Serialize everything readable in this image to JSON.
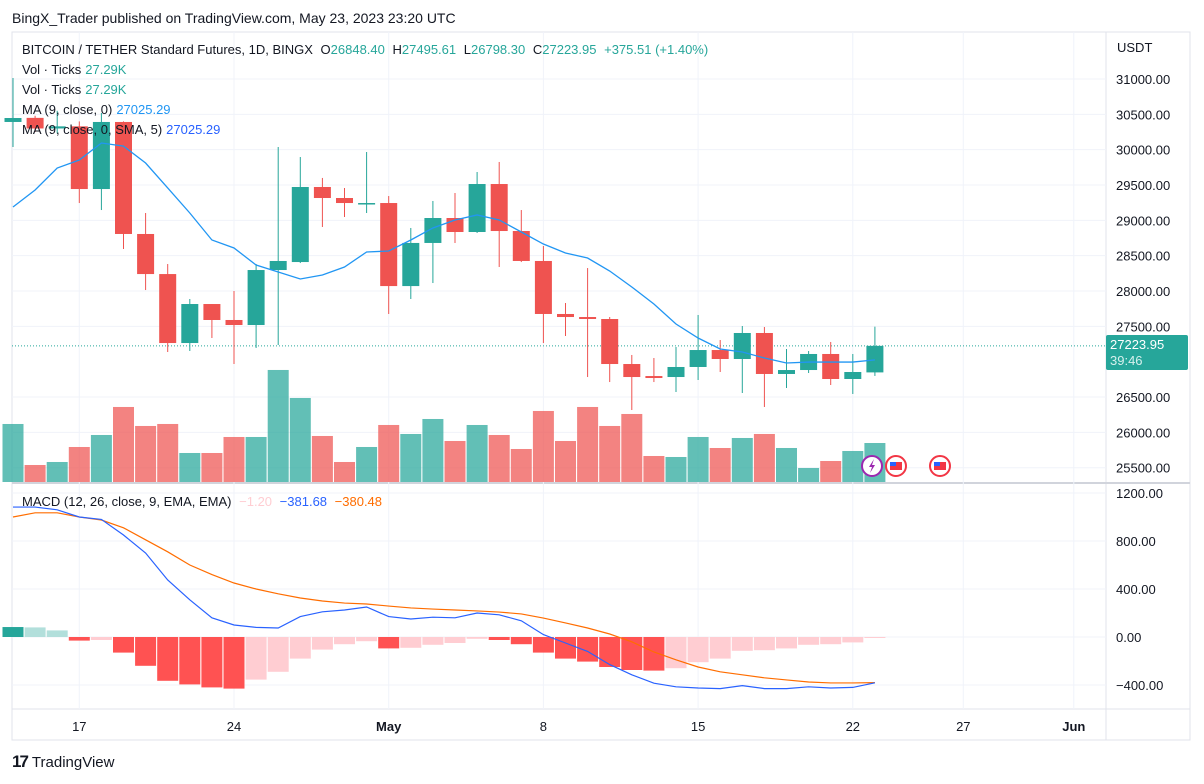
{
  "publish_line": "BingX_Trader published on TradingView.com, May 23, 2023 23:20 UTC",
  "legend": {
    "symbol": "BITCOIN / TETHER Standard Futures, 1D, BINGX",
    "o_label": "O",
    "o": "26848.40",
    "h_label": "H",
    "h": "27495.61",
    "l_label": "L",
    "l": "26798.30",
    "c_label": "C",
    "c": "27223.95",
    "change": "+375.51 (+1.40%)",
    "vol1_label": "Vol · Ticks",
    "vol1": "27.29K",
    "vol2_label": "Vol · Ticks",
    "vol2": "27.29K",
    "ma1_label": "MA (9, close, 0)",
    "ma1": "27025.29",
    "ma2_label": "MA (9, close, 0, SMA, 5)",
    "ma2": "27025.29",
    "macd_label": "MACD (12, 26, close, 9, EMA, EMA)",
    "macd_hist": "−1.20",
    "macd": "−381.68",
    "macd_signal": "−380.48"
  },
  "price_axis": {
    "currency": "USDT",
    "last_price": "27223.95",
    "countdown": "39:46"
  },
  "footer": {
    "brand": "TradingView"
  },
  "colors": {
    "up": "#26a69a",
    "down": "#ef5350",
    "ma": "#2196f3",
    "macd": "#2962ff",
    "signal": "#ff6d00"
  },
  "chart_data": [
    {
      "type": "candlestick",
      "title": "BITCOIN / TETHER Standard Futures, 1D, BINGX",
      "ylabel": "USDT",
      "ylim": [
        25300,
        31300
      ],
      "yticks": [
        "31000.00",
        "30500.00",
        "30000.00",
        "29500.00",
        "29000.00",
        "28500.00",
        "28000.00",
        "27500.00",
        "26500.00",
        "26000.00",
        "25500.00"
      ],
      "xticks": [
        {
          "idx": 3,
          "label": "17"
        },
        {
          "idx": 10,
          "label": "24"
        },
        {
          "idx": 17,
          "label": "May"
        },
        {
          "idx": 24,
          "label": "8"
        },
        {
          "idx": 31,
          "label": "15"
        },
        {
          "idx": 38,
          "label": "22"
        },
        {
          "idx": 43,
          "label": "27"
        },
        {
          "idx": 48,
          "label": "Jun"
        }
      ],
      "dates": [
        "Apr 14",
        "Apr 15",
        "Apr 16",
        "Apr 17",
        "Apr 18",
        "Apr 19",
        "Apr 20",
        "Apr 21",
        "Apr 22",
        "Apr 23",
        "Apr 24",
        "Apr 25",
        "Apr 26",
        "Apr 27",
        "Apr 28",
        "Apr 29",
        "Apr 30",
        "May 1",
        "May 2",
        "May 3",
        "May 4",
        "May 5",
        "May 6",
        "May 7",
        "May 8",
        "May 9",
        "May 10",
        "May 11",
        "May 12",
        "May 13",
        "May 14",
        "May 15",
        "May 16",
        "May 17",
        "May 18",
        "May 19",
        "May 20",
        "May 21",
        "May 22",
        "May 23"
      ],
      "ohlc": [
        [
          30392,
          31014,
          30038,
          30448
        ],
        [
          30450,
          30480,
          30250,
          30300
        ],
        [
          30300,
          30550,
          30230,
          30330
        ],
        [
          30330,
          30400,
          29245,
          29443
        ],
        [
          29443,
          30519,
          29146,
          30392
        ],
        [
          30392,
          30400,
          28595,
          28807
        ],
        [
          28807,
          29104,
          28014,
          28240
        ],
        [
          28240,
          28382,
          27137,
          27264
        ],
        [
          27264,
          27887,
          27151,
          27816
        ],
        [
          27816,
          27816,
          27335,
          27590
        ],
        [
          27590,
          28000,
          26967,
          27519
        ],
        [
          27519,
          28382,
          27194,
          28297
        ],
        [
          28297,
          30038,
          27236,
          28425
        ],
        [
          28410,
          29896,
          28396,
          29472
        ],
        [
          29472,
          29600,
          28906,
          29316
        ],
        [
          29316,
          29458,
          29047,
          29245
        ],
        [
          29240,
          29967,
          29104,
          29245
        ],
        [
          29245,
          29344,
          27675,
          28070
        ],
        [
          28070,
          28892,
          27887,
          28680
        ],
        [
          28680,
          29274,
          28113,
          29033
        ],
        [
          29033,
          29387,
          28680,
          28835
        ],
        [
          28835,
          29684,
          28821,
          29514
        ],
        [
          29514,
          29826,
          28340,
          28849
        ],
        [
          28849,
          29146,
          28410,
          28425
        ],
        [
          28425,
          28637,
          27264,
          27675
        ],
        [
          27675,
          27830,
          27363,
          27632
        ],
        [
          27632,
          28325,
          26783,
          27604
        ],
        [
          27604,
          27632,
          26712,
          26967
        ],
        [
          26967,
          27095,
          26316,
          26783
        ],
        [
          26797,
          27052,
          26712,
          26769
        ],
        [
          26783,
          27208,
          26571,
          26925
        ],
        [
          26925,
          27661,
          26741,
          27165
        ],
        [
          27165,
          27307,
          26854,
          27038
        ],
        [
          27038,
          27505,
          26557,
          27406
        ],
        [
          27406,
          27491,
          26359,
          26826
        ],
        [
          26826,
          27180,
          26628,
          26882
        ],
        [
          26882,
          27151,
          26840,
          27109
        ],
        [
          27109,
          27279,
          26670,
          26755
        ],
        [
          26755,
          27109,
          26543,
          26854
        ],
        [
          26848.4,
          27495.61,
          26798.3,
          27223.95
        ]
      ],
      "ma9": [
        29189,
        29430,
        29740,
        29854,
        30094,
        30050,
        29811,
        29458,
        29104,
        28722,
        28609,
        28368,
        28269,
        28170,
        28226,
        28340,
        28552,
        28566,
        28722,
        28892,
        29005,
        29076,
        29005,
        28835,
        28665,
        28538,
        28467,
        28283,
        28057,
        27816,
        27533,
        27335,
        27180,
        27137,
        27052,
        26981,
        26995,
        26995,
        26995,
        27025.29
      ],
      "volume_k": [
        40.6,
        11.9,
        14,
        24.5,
        32.9,
        52.5,
        39.2,
        40.6,
        20.3,
        20.3,
        31.5,
        31.5,
        78.4,
        58.8,
        32.2,
        14,
        24.5,
        39.9,
        33.6,
        44.1,
        28.7,
        39.9,
        32.9,
        23.1,
        49.7,
        28.7,
        52.5,
        39.2,
        47.6,
        18.2,
        17.5,
        31.5,
        23.8,
        30.8,
        33.6,
        23.8,
        9.8,
        14.7,
        21.7,
        27.29
      ]
    },
    {
      "type": "line+histogram",
      "title": "MACD (12, 26, close, 9, EMA, EMA)",
      "ylim": [
        -500,
        1300
      ],
      "yticks": [
        "1200.00",
        "800.00",
        "400.00",
        "0.00",
        "−400.00"
      ],
      "histogram": [
        83,
        80,
        55,
        -30,
        -25,
        -130,
        -240,
        -365,
        -395,
        -420,
        -430,
        -355,
        -290,
        -180,
        -105,
        -60,
        -35,
        -95,
        -90,
        -65,
        -50,
        -15,
        -25,
        -60,
        -130,
        -180,
        -205,
        -250,
        -275,
        -280,
        -260,
        -210,
        -180,
        -115,
        -110,
        -95,
        -65,
        -60,
        -45,
        -1.2
      ],
      "macd": [
        1083,
        1083,
        1060,
        1000,
        980,
        850,
        700,
        475,
        310,
        160,
        100,
        80,
        75,
        170,
        210,
        225,
        250,
        170,
        150,
        165,
        160,
        200,
        185,
        135,
        20,
        -50,
        -120,
        -230,
        -315,
        -385,
        -415,
        -425,
        -430,
        -405,
        -430,
        -430,
        -415,
        -425,
        -420,
        -381.68
      ],
      "signal": [
        1000,
        1035,
        1035,
        1000,
        975,
        910,
        810,
        710,
        600,
        520,
        450,
        400,
        360,
        325,
        300,
        283,
        275,
        258,
        242,
        233,
        225,
        217,
        208,
        192,
        158,
        117,
        75,
        25,
        -40,
        -125,
        -190,
        -250,
        -290,
        -315,
        -340,
        -358,
        -375,
        -383,
        -383,
        -380.48
      ]
    }
  ]
}
